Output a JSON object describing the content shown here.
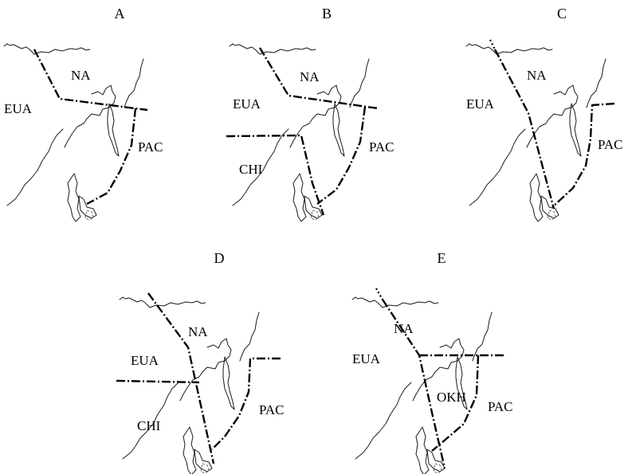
{
  "panels": [
    {
      "id": "A",
      "title": "A",
      "labels": [
        "NA",
        "EUA",
        "PAC"
      ]
    },
    {
      "id": "B",
      "title": "B",
      "labels": [
        "NA",
        "EUA",
        "PAC",
        "CHI"
      ]
    },
    {
      "id": "C",
      "title": "C",
      "labels": [
        "NA",
        "EUA",
        "PAC"
      ]
    },
    {
      "id": "D",
      "title": "D",
      "labels": [
        "NA",
        "EUA",
        "PAC",
        "CHI"
      ]
    },
    {
      "id": "E",
      "title": "E",
      "labels": [
        "NA",
        "EUA",
        "PAC",
        "OKH"
      ]
    }
  ]
}
